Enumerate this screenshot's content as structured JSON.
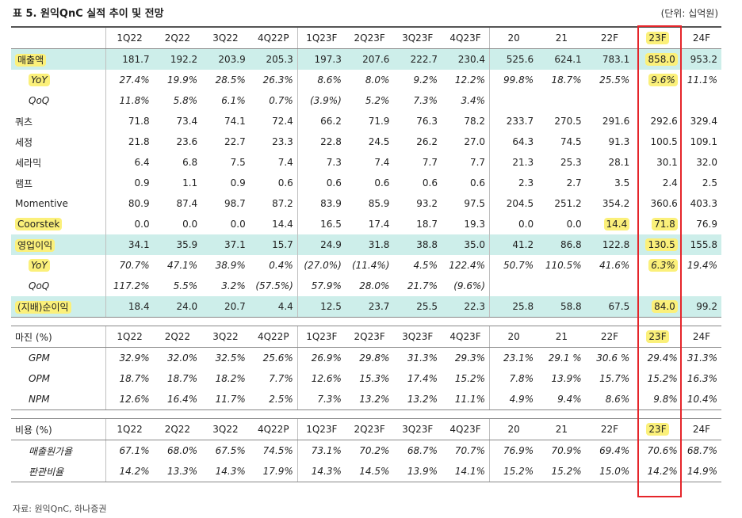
{
  "title": "표 5. 원익QnC 실적 추이 및 전망",
  "unit": "(단위: 십억원)",
  "source": "자료: 원익QnC, 하나증권",
  "columns": [
    "1Q22",
    "2Q22",
    "3Q22",
    "4Q22P",
    "1Q23F",
    "2Q23F",
    "3Q23F",
    "4Q23F",
    "20",
    "21",
    "22F",
    "23F",
    "24F"
  ],
  "table1": [
    {
      "label": "매출액",
      "style": "main-hl",
      "values": [
        "181.7",
        "192.2",
        "203.9",
        "205.3",
        "197.3",
        "207.6",
        "222.7",
        "230.4",
        "525.6",
        "624.1",
        "783.1",
        "858.0",
        "953.2"
      ]
    },
    {
      "label": "YoY",
      "style": "sub-hl",
      "values": [
        "27.4%",
        "19.9%",
        "28.5%",
        "26.3%",
        "8.6%",
        "8.0%",
        "9.2%",
        "12.2%",
        "99.8%",
        "18.7%",
        "25.5%",
        "9.6%",
        "11.1%"
      ]
    },
    {
      "label": "QoQ",
      "style": "sub",
      "values": [
        "11.8%",
        "5.8%",
        "6.1%",
        "0.7%",
        "(3.9%)",
        "5.2%",
        "7.3%",
        "3.4%",
        "",
        "",
        "",
        "",
        ""
      ]
    },
    {
      "label": "쿼츠",
      "style": "plain",
      "values": [
        "71.8",
        "73.4",
        "74.1",
        "72.4",
        "66.2",
        "71.9",
        "76.3",
        "78.2",
        "233.7",
        "270.5",
        "291.6",
        "292.6",
        "329.4"
      ]
    },
    {
      "label": "세정",
      "style": "plain",
      "values": [
        "21.8",
        "23.6",
        "22.7",
        "23.3",
        "22.8",
        "24.5",
        "26.2",
        "27.0",
        "64.3",
        "74.5",
        "91.3",
        "100.5",
        "109.1"
      ]
    },
    {
      "label": "세라믹",
      "style": "plain",
      "values": [
        "6.4",
        "6.8",
        "7.5",
        "7.4",
        "7.3",
        "7.4",
        "7.7",
        "7.7",
        "21.3",
        "25.3",
        "28.1",
        "30.1",
        "32.0"
      ]
    },
    {
      "label": "램프",
      "style": "plain",
      "values": [
        "0.9",
        "1.1",
        "0.9",
        "0.6",
        "0.6",
        "0.6",
        "0.6",
        "0.6",
        "2.3",
        "2.7",
        "3.5",
        "2.4",
        "2.5"
      ]
    },
    {
      "label": "Momentive",
      "style": "plain",
      "values": [
        "80.9",
        "87.4",
        "98.7",
        "87.2",
        "83.9",
        "85.9",
        "93.2",
        "97.5",
        "204.5",
        "251.2",
        "354.2",
        "360.6",
        "403.3"
      ]
    },
    {
      "label": "Coorstek",
      "style": "plain-hl",
      "values": [
        "0.0",
        "0.0",
        "0.0",
        "14.4",
        "16.5",
        "17.4",
        "18.7",
        "19.3",
        "0.0",
        "0.0",
        "14.4",
        "71.8",
        "76.9"
      ]
    },
    {
      "label": "영업이익",
      "style": "main-hl",
      "values": [
        "34.1",
        "35.9",
        "37.1",
        "15.7",
        "24.9",
        "31.8",
        "38.8",
        "35.0",
        "41.2",
        "86.8",
        "122.8",
        "130.5",
        "155.8"
      ]
    },
    {
      "label": "YoY",
      "style": "sub-hl",
      "values": [
        "70.7%",
        "47.1%",
        "38.9%",
        "0.4%",
        "(27.0%)",
        "(11.4%)",
        "4.5%",
        "122.4%",
        "50.7%",
        "110.5%",
        "41.6%",
        "6.3%",
        "19.4%"
      ]
    },
    {
      "label": "QoQ",
      "style": "sub",
      "values": [
        "117.2%",
        "5.5%",
        "3.2%",
        "(57.5%)",
        "57.9%",
        "28.0%",
        "21.7%",
        "(9.6%)",
        "",
        "",
        "",
        "",
        ""
      ]
    },
    {
      "label": "(지배)순이익",
      "style": "main-hl",
      "values": [
        "18.4",
        "24.0",
        "20.7",
        "4.4",
        "12.5",
        "23.7",
        "25.5",
        "22.3",
        "25.8",
        "58.8",
        "67.5",
        "84.0",
        "99.2"
      ]
    }
  ],
  "margin_header": "마진 (%)",
  "table2": [
    {
      "label": "GPM",
      "values": [
        "32.9%",
        "32.0%",
        "32.5%",
        "25.6%",
        "26.9%",
        "29.8%",
        "31.3%",
        "29.3%",
        "23.1%",
        "29.1 %",
        "30.6 %",
        "29.4%",
        "31.3%"
      ]
    },
    {
      "label": "OPM",
      "values": [
        "18.7%",
        "18.7%",
        "18.2%",
        "7.7%",
        "12.6%",
        "15.3%",
        "17.4%",
        "15.2%",
        "7.8%",
        "13.9%",
        "15.7%",
        "15.2%",
        "16.3%"
      ]
    },
    {
      "label": "NPM",
      "values": [
        "12.6%",
        "16.4%",
        "11.7%",
        "2.5%",
        "7.3%",
        "13.2%",
        "13.2%",
        "11.1%",
        "4.9%",
        "9.4%",
        "8.6%",
        "9.8%",
        "10.4%"
      ]
    }
  ],
  "cost_header": "비용 (%)",
  "table3": [
    {
      "label": "매출원가율",
      "values": [
        "67.1%",
        "68.0%",
        "67.5%",
        "74.5%",
        "73.1%",
        "70.2%",
        "68.7%",
        "70.7%",
        "76.9%",
        "70.9%",
        "69.4%",
        "70.6%",
        "68.7%"
      ]
    },
    {
      "label": "판관비율",
      "values": [
        "14.2%",
        "13.3%",
        "14.3%",
        "17.9%",
        "14.3%",
        "14.5%",
        "13.9%",
        "14.1%",
        "15.2%",
        "15.2%",
        "15.0%",
        "14.2%",
        "14.9%"
      ]
    }
  ],
  "colors": {
    "row_highlight": "#cdeeea",
    "yellow_highlight": "#fbf07a",
    "red_box": "#e5252a"
  }
}
